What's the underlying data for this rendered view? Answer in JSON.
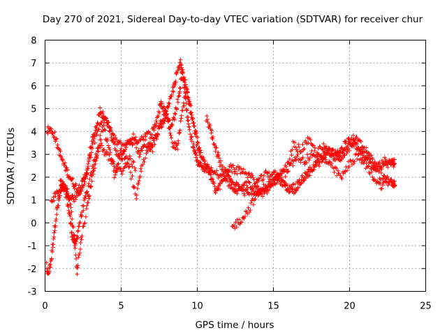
{
  "chart_data": {
    "type": "scatter",
    "title": "Day 270 of 2021, Sidereal Day-to-day VTEC variation (SDTVAR) for receiver chur",
    "xlabel": "GPS time / hours",
    "ylabel": "SDTVAR / TECUs",
    "xlim": [
      0,
      25
    ],
    "ylim": [
      -3,
      8
    ],
    "xticks": [
      "0",
      "5",
      "10",
      "15",
      "20",
      "25"
    ],
    "yticks": [
      "-3",
      "-2",
      "-1",
      "0",
      "1",
      "2",
      "3",
      "4",
      "5",
      "6",
      "7",
      "8"
    ],
    "xtick_values": [
      0,
      5,
      10,
      15,
      20,
      25
    ],
    "ytick_values": [
      -3,
      -2,
      -1,
      0,
      1,
      2,
      3,
      4,
      5,
      6,
      7,
      8
    ],
    "grid": true,
    "marker": "+",
    "series": [
      {
        "name": "SDTVAR",
        "color": "#ff0000",
        "tracks": [
          [
            [
              0.0,
              -1.5
            ],
            [
              0.2,
              -2.3
            ],
            [
              0.4,
              -1.6
            ],
            [
              0.6,
              -0.4
            ],
            [
              0.8,
              0.6
            ],
            [
              1.0,
              1.3
            ],
            [
              1.2,
              1.6
            ],
            [
              1.4,
              1.2
            ],
            [
              1.6,
              0.4
            ],
            [
              1.8,
              -0.6
            ],
            [
              2.0,
              -1.0
            ],
            [
              2.2,
              -0.2
            ],
            [
              2.5,
              0.7
            ],
            [
              2.8,
              1.4
            ],
            [
              3.2,
              2.6
            ],
            [
              3.6,
              3.5
            ],
            [
              4.0,
              3.0
            ],
            [
              4.5,
              2.6
            ],
            [
              5.0,
              2.2
            ],
            [
              5.5,
              2.8
            ],
            [
              6.0,
              2.4
            ]
          ],
          [
            [
              0.0,
              4.0
            ],
            [
              0.3,
              4.1
            ],
            [
              0.6,
              3.9
            ],
            [
              0.9,
              3.2
            ],
            [
              1.2,
              2.6
            ],
            [
              1.5,
              2.2
            ],
            [
              1.8,
              1.8
            ],
            [
              2.1,
              1.5
            ],
            [
              2.4,
              1.6
            ],
            [
              2.7,
              2.2
            ],
            [
              3.0,
              3.0
            ],
            [
              3.4,
              4.0
            ],
            [
              3.8,
              4.6
            ],
            [
              4.2,
              4.2
            ],
            [
              4.6,
              3.6
            ],
            [
              5.0,
              3.4
            ],
            [
              5.5,
              3.5
            ],
            [
              6.0,
              3.6
            ],
            [
              6.5,
              3.8
            ],
            [
              7.0,
              3.9
            ],
            [
              7.3,
              4.4
            ],
            [
              7.6,
              5.2
            ],
            [
              7.9,
              4.9
            ],
            [
              8.2,
              4.3
            ],
            [
              8.5,
              4.6
            ],
            [
              8.8,
              5.6
            ],
            [
              9.0,
              6.6
            ],
            [
              9.2,
              6.1
            ],
            [
              9.5,
              5.2
            ],
            [
              9.8,
              4.2
            ],
            [
              10.1,
              3.0
            ],
            [
              10.4,
              2.3
            ],
            [
              10.7,
              2.4
            ],
            [
              11.0,
              2.2
            ],
            [
              11.5,
              2.1
            ],
            [
              12.0,
              1.8
            ],
            [
              12.4,
              1.4
            ],
            [
              12.8,
              1.5
            ],
            [
              13.2,
              1.3
            ],
            [
              13.6,
              1.4
            ],
            [
              14.0,
              1.3
            ],
            [
              14.5,
              1.5
            ],
            [
              15.0,
              1.7
            ],
            [
              15.5,
              2.3
            ],
            [
              16.0,
              2.4
            ],
            [
              16.5,
              2.9
            ],
            [
              17.0,
              2.7
            ],
            [
              17.5,
              3.0
            ],
            [
              18.0,
              2.6
            ],
            [
              18.5,
              3.2
            ],
            [
              19.0,
              3.0
            ],
            [
              19.5,
              3.3
            ],
            [
              20.0,
              3.6
            ],
            [
              20.5,
              3.3
            ],
            [
              21.0,
              3.0
            ],
            [
              21.5,
              2.7
            ],
            [
              22.0,
              2.5
            ],
            [
              22.5,
              2.6
            ],
            [
              23.0,
              2.5
            ]
          ],
          [
            [
              0.4,
              1.0
            ],
            [
              0.8,
              1.3
            ],
            [
              1.2,
              1.7
            ],
            [
              1.6,
              1.0
            ],
            [
              1.9,
              -0.4
            ],
            [
              2.1,
              -2.1
            ],
            [
              2.4,
              -0.6
            ],
            [
              2.8,
              0.8
            ],
            [
              3.1,
              2.0
            ],
            [
              3.4,
              3.0
            ],
            [
              3.8,
              4.2
            ],
            [
              4.2,
              3.3
            ],
            [
              4.6,
              2.0
            ],
            [
              5.0,
              3.2
            ],
            [
              5.5,
              2.6
            ],
            [
              6.0,
              1.1
            ],
            [
              6.3,
              2.4
            ],
            [
              6.8,
              3.3
            ],
            [
              7.2,
              3.6
            ],
            [
              7.6,
              4.3
            ],
            [
              8.0,
              4.7
            ],
            [
              8.4,
              3.4
            ],
            [
              8.7,
              3.3
            ],
            [
              9.0,
              4.8
            ],
            [
              9.3,
              5.9
            ],
            [
              9.6,
              4.7
            ],
            [
              10.0,
              3.7
            ],
            [
              10.3,
              2.9
            ],
            [
              10.6,
              2.5
            ],
            [
              10.9,
              2.0
            ],
            [
              11.2,
              1.4
            ],
            [
              11.5,
              1.6
            ],
            [
              11.9,
              2.1
            ],
            [
              12.3,
              1.9
            ],
            [
              12.8,
              1.6
            ],
            [
              13.3,
              1.7
            ],
            [
              13.8,
              1.5
            ],
            [
              14.3,
              1.3
            ],
            [
              14.8,
              1.6
            ],
            [
              15.3,
              2.0
            ],
            [
              15.8,
              2.2
            ],
            [
              16.3,
              3.4
            ],
            [
              16.8,
              3.2
            ],
            [
              17.3,
              3.6
            ],
            [
              17.8,
              3.1
            ],
            [
              18.3,
              3.3
            ],
            [
              18.8,
              3.0
            ],
            [
              19.3,
              2.8
            ],
            [
              19.8,
              3.2
            ],
            [
              20.3,
              3.5
            ],
            [
              20.8,
              3.0
            ],
            [
              21.3,
              2.6
            ],
            [
              21.8,
              2.4
            ],
            [
              22.3,
              2.7
            ],
            [
              22.8,
              2.6
            ],
            [
              23.0,
              2.6
            ]
          ],
          [
            [
              1.0,
              1.8
            ],
            [
              1.3,
              1.5
            ],
            [
              1.6,
              1.2
            ],
            [
              1.9,
              1.0
            ],
            [
              2.3,
              1.4
            ],
            [
              2.7,
              2.0
            ],
            [
              3.0,
              3.4
            ],
            [
              3.3,
              4.0
            ],
            [
              3.6,
              4.9
            ],
            [
              3.9,
              4.6
            ],
            [
              4.2,
              4.2
            ],
            [
              4.6,
              3.2
            ],
            [
              5.0,
              2.8
            ],
            [
              5.4,
              3.4
            ],
            [
              5.8,
              3.8
            ],
            [
              6.2,
              3.0
            ],
            [
              6.6,
              3.5
            ],
            [
              7.0,
              3.2
            ],
            [
              7.4,
              4.0
            ],
            [
              7.8,
              4.6
            ],
            [
              8.1,
              5.0
            ],
            [
              8.4,
              5.8
            ],
            [
              8.6,
              6.4
            ],
            [
              8.9,
              7.0
            ],
            [
              9.1,
              6.4
            ],
            [
              9.3,
              5.0
            ],
            [
              9.5,
              4.0
            ],
            [
              9.8,
              3.2
            ],
            [
              10.0,
              2.6
            ],
            [
              10.3,
              2.4
            ]
          ],
          [
            [
              12.3,
              -0.2
            ],
            [
              12.8,
              0.1
            ],
            [
              13.3,
              0.5
            ],
            [
              13.8,
              1.1
            ],
            [
              14.3,
              1.5
            ],
            [
              14.8,
              1.8
            ],
            [
              15.3,
              1.9
            ],
            [
              15.8,
              1.6
            ],
            [
              16.3,
              1.4
            ],
            [
              16.8,
              1.8
            ],
            [
              17.3,
              2.2
            ],
            [
              17.8,
              2.6
            ],
            [
              18.3,
              2.9
            ],
            [
              18.8,
              3.2
            ],
            [
              19.3,
              2.8
            ],
            [
              19.8,
              3.4
            ],
            [
              20.3,
              3.7
            ],
            [
              20.8,
              3.4
            ],
            [
              21.3,
              3.0
            ],
            [
              21.8,
              2.2
            ],
            [
              22.3,
              1.9
            ],
            [
              22.8,
              1.7
            ],
            [
              23.0,
              1.6
            ]
          ],
          [
            [
              10.6,
              4.6
            ],
            [
              10.9,
              4.0
            ],
            [
              11.2,
              3.3
            ],
            [
              11.5,
              2.6
            ],
            [
              11.8,
              2.2
            ],
            [
              12.1,
              2.4
            ],
            [
              12.5,
              2.3
            ],
            [
              13.0,
              2.3
            ],
            [
              13.5,
              2.0
            ],
            [
              14.0,
              1.8
            ],
            [
              14.5,
              2.1
            ],
            [
              15.0,
              2.2
            ],
            [
              15.5,
              1.8
            ],
            [
              16.0,
              1.5
            ],
            [
              16.5,
              1.6
            ],
            [
              17.0,
              2.0
            ],
            [
              17.5,
              2.3
            ],
            [
              18.0,
              2.9
            ],
            [
              18.5,
              2.7
            ],
            [
              19.0,
              2.3
            ],
            [
              19.5,
              2.0
            ],
            [
              20.0,
              2.6
            ],
            [
              20.5,
              2.9
            ],
            [
              21.0,
              2.6
            ],
            [
              21.5,
              2.1
            ],
            [
              22.0,
              1.6
            ],
            [
              22.5,
              1.9
            ],
            [
              23.0,
              1.7
            ]
          ]
        ]
      }
    ]
  }
}
